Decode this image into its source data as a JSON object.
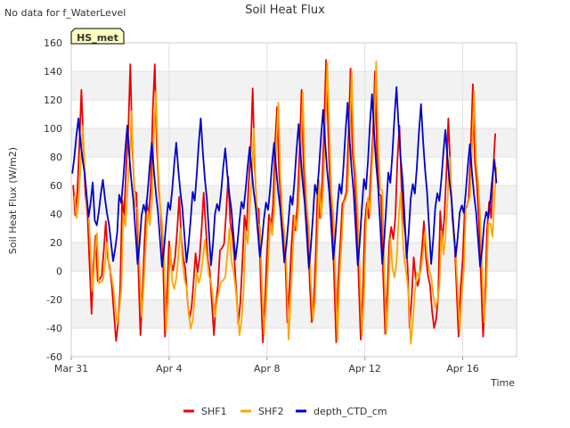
{
  "status_text": "No data for f_WaterLevel",
  "badge": {
    "label": "HS_met",
    "text_color": "#8b0000",
    "fill": "#ffffc0"
  },
  "chart_data": {
    "type": "line",
    "title": "Soil Heat Flux",
    "xlabel": "Time",
    "ylabel": "Soil Heat Flux (W/m2)",
    "xlim_days": [
      0,
      18.2
    ],
    "ylim": [
      -60,
      160
    ],
    "yticks": [
      -60,
      -40,
      -20,
      0,
      20,
      40,
      60,
      80,
      100,
      120,
      140,
      160
    ],
    "xticks": [
      {
        "day": 0,
        "label": "Mar 31"
      },
      {
        "day": 4,
        "label": "Apr 4"
      },
      {
        "day": 8,
        "label": "Apr 8"
      },
      {
        "day": 12,
        "label": "Apr 12"
      },
      {
        "day": 16,
        "label": "Apr 16"
      }
    ],
    "grid": true,
    "band_fill": "#f2f2f2",
    "legend_position": "bottom-center",
    "series": [
      {
        "name": "SHF1",
        "color": "#ee0000",
        "daily": [
          {
            "min": -30,
            "max": 127
          },
          {
            "min": -49,
            "max": 35
          },
          {
            "min": -45,
            "max": 145
          },
          {
            "min": -46,
            "max": 145
          },
          {
            "min": -40,
            "max": 52
          },
          {
            "min": -45,
            "max": 55
          },
          {
            "min": -37,
            "max": 66
          },
          {
            "min": -50,
            "max": 128
          },
          {
            "min": -36,
            "max": 115
          },
          {
            "min": -49,
            "max": 127
          },
          {
            "min": -50,
            "max": 148
          },
          {
            "min": -48,
            "max": 142
          },
          {
            "min": -44,
            "max": 140
          },
          {
            "min": -40,
            "max": 102
          },
          {
            "min": -46,
            "max": 35
          },
          {
            "min": -46,
            "max": 107
          },
          {
            "min": -46,
            "max": 131
          },
          {
            "min": -47,
            "max": 144
          },
          {
            "min": -35,
            "max": 0
          }
        ]
      },
      {
        "name": "SHF2",
        "color": "#ffa500",
        "daily": [
          {
            "min": -14,
            "max": 102
          },
          {
            "min": -37,
            "max": 20
          },
          {
            "min": -32,
            "max": 112
          },
          {
            "min": -42,
            "max": 126
          },
          {
            "min": -46,
            "max": 30
          },
          {
            "min": -32,
            "max": 22
          },
          {
            "min": -45,
            "max": 30
          },
          {
            "min": -44,
            "max": 100
          },
          {
            "min": -48,
            "max": 118
          },
          {
            "min": -47,
            "max": 125
          },
          {
            "min": -48,
            "max": 146
          },
          {
            "min": -45,
            "max": 140
          },
          {
            "min": -44,
            "max": 147
          },
          {
            "min": -51,
            "max": 55
          },
          {
            "min": -30,
            "max": 28
          },
          {
            "min": -42,
            "max": 80
          },
          {
            "min": -36,
            "max": 126
          },
          {
            "min": -45,
            "max": 112
          },
          {
            "min": -20,
            "max": -3
          }
        ]
      },
      {
        "name": "depth_CTD_cm",
        "color": "#0000cc",
        "daily": [
          {
            "min": 38,
            "max": 107
          },
          {
            "min": 7,
            "max": 64
          },
          {
            "min": 5,
            "max": 102
          },
          {
            "min": 3,
            "max": 90
          },
          {
            "min": 6,
            "max": 90
          },
          {
            "min": 4,
            "max": 107
          },
          {
            "min": 8,
            "max": 86
          },
          {
            "min": 10,
            "max": 87
          },
          {
            "min": 6,
            "max": 90
          },
          {
            "min": 2,
            "max": 103
          },
          {
            "min": 8,
            "max": 113
          },
          {
            "min": 4,
            "max": 118
          },
          {
            "min": 5,
            "max": 124
          },
          {
            "min": 9,
            "max": 129
          },
          {
            "min": 5,
            "max": 117
          },
          {
            "min": 10,
            "max": 99
          },
          {
            "min": 3,
            "max": 89
          },
          {
            "min": 5,
            "max": 78
          },
          {
            "min": 6,
            "max": 60
          }
        ]
      }
    ]
  }
}
